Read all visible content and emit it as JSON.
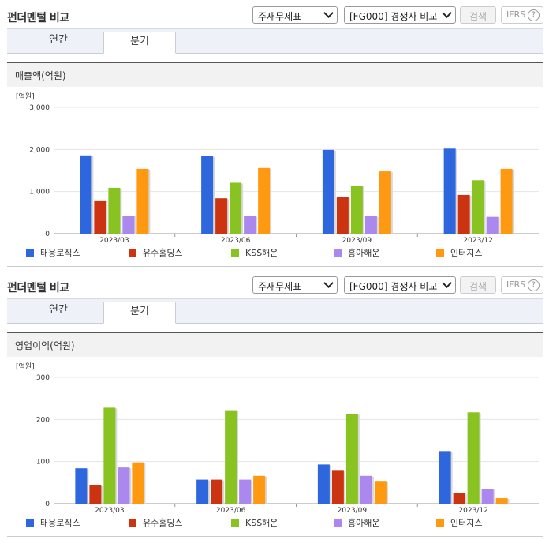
{
  "page": {
    "title": "펀더멘털 비교",
    "select_type": "주재무제표",
    "select_compare": "[FG000] 경쟁사 비교",
    "search_label": "검색",
    "ifrs_label": "IFRS",
    "help_glyph": "?",
    "tab_annual": "연간",
    "tab_quarter": "분기"
  },
  "colors": {
    "series": [
      "#2e66dd",
      "#cc3311",
      "#88c322",
      "#aa88ee",
      "#ff9911"
    ]
  },
  "sections": [
    {
      "subtitle": "매출액(억원)",
      "unit": "[억원]"
    },
    {
      "subtitle": "영업이익(억원)",
      "unit": "[억원]"
    }
  ],
  "chart_data": [
    {
      "type": "bar",
      "title": "매출액(억원)",
      "ylabel": "[억원]",
      "categories": [
        "2023/03",
        "2023/06",
        "2023/09",
        "2023/12"
      ],
      "ylim": [
        0,
        3000
      ],
      "yticks": [
        "0",
        "1,000",
        "2,000",
        "3,000"
      ],
      "ytick_values": [
        0,
        1000,
        2000,
        3000
      ],
      "grid": true,
      "legend": "bottom",
      "series": [
        {
          "name": "태웅로직스",
          "values": [
            1860,
            1840,
            1990,
            2020
          ]
        },
        {
          "name": "유수홀딩스",
          "values": [
            790,
            840,
            870,
            920
          ]
        },
        {
          "name": "KSS해운",
          "values": [
            1090,
            1210,
            1140,
            1270
          ]
        },
        {
          "name": "흥아해운",
          "values": [
            430,
            420,
            420,
            400
          ]
        },
        {
          "name": "인터지스",
          "values": [
            1540,
            1560,
            1480,
            1540
          ]
        }
      ]
    },
    {
      "type": "bar",
      "title": "영업이익(억원)",
      "ylabel": "[억원]",
      "categories": [
        "2023/03",
        "2023/06",
        "2023/09",
        "2023/12"
      ],
      "ylim": [
        0,
        300
      ],
      "yticks": [
        "0",
        "100",
        "200",
        "300"
      ],
      "ytick_values": [
        0,
        100,
        200,
        300
      ],
      "grid": true,
      "legend": "bottom",
      "series": [
        {
          "name": "태웅로직스",
          "values": [
            84,
            57,
            93,
            125
          ]
        },
        {
          "name": "유수홀딩스",
          "values": [
            45,
            57,
            80,
            25
          ]
        },
        {
          "name": "KSS해운",
          "values": [
            228,
            222,
            213,
            217
          ]
        },
        {
          "name": "흥아해운",
          "values": [
            86,
            57,
            66,
            35
          ]
        },
        {
          "name": "인터지스",
          "values": [
            98,
            66,
            54,
            13
          ]
        }
      ]
    }
  ]
}
